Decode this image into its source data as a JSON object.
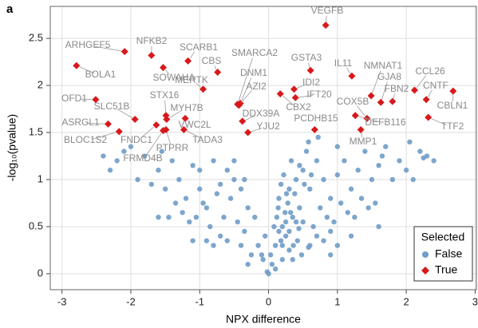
{
  "panel_label": "a",
  "chart_data": {
    "type": "scatter",
    "x_label": "NPX difference",
    "y_label": "-log₁₀(pvalue)",
    "xlim": [
      -3.17,
      3.03
    ],
    "ylim": [
      -0.17,
      2.84
    ],
    "xticks": [
      -3,
      -2,
      -1,
      0,
      1,
      2,
      3
    ],
    "yticks": [
      0,
      0.5,
      1,
      1.5,
      2,
      2.5
    ],
    "grid": true,
    "legend_title": "Selected",
    "legend_position": "lower right",
    "series": [
      {
        "name": "False",
        "color": "#6f9cc8",
        "marker": "circle",
        "x": [
          0.05,
          0.1,
          -0.1,
          0.2,
          0.15,
          -0.2,
          0.3,
          0.25,
          0.4,
          -0.3,
          0.35,
          0.5,
          -0.4,
          0.45,
          0.6,
          -0.5,
          0.55,
          -0.6,
          0.7,
          0.65,
          -0.7,
          0.8,
          0.9,
          -0.8,
          1.0,
          -0.9,
          1.1,
          -1.0,
          1.2,
          -1.1,
          1.3,
          -1.2,
          1.4,
          -1.3,
          1.5,
          -1.4,
          1.6,
          -1.5,
          1.7,
          -1.6,
          1.8,
          -1.7,
          1.9,
          -1.8,
          2.0,
          -1.9,
          2.2,
          -2.0,
          2.3,
          -2.1,
          2.1,
          -2.2,
          -2.3,
          0.1,
          0.2,
          0.3,
          0.12,
          0.28,
          -0.05,
          -0.15,
          -0.25,
          -0.35,
          0.42,
          0.5,
          0.38,
          0.22,
          0.33,
          0.18,
          -0.45,
          -0.55,
          -0.65,
          -0.75,
          -0.85,
          -0.95,
          -1.05,
          -1.15,
          -1.25,
          -1.35,
          -1.45,
          0.75,
          0.85,
          0.95,
          1.05,
          1.15,
          1.25,
          1.35,
          1.45,
          1.55,
          0.6,
          0.7,
          0.8,
          0.9,
          -0.6,
          -0.7,
          -0.8,
          -0.9,
          0.08,
          0.15,
          0.24,
          -0.08,
          -0.02,
          0.03,
          0.45,
          0.52,
          0.62,
          -0.35,
          -0.5,
          1.0,
          1.65,
          2.05,
          -1.55,
          -1.0,
          0.58,
          0.72,
          0.35,
          0.48,
          -0.4,
          -0.3,
          1.2,
          1.0,
          -1.1,
          0.9,
          1.6,
          -1.6,
          2.4,
          -2.4,
          0.2,
          0.25,
          0.3,
          0.4,
          0.36,
          0.44,
          0.18,
          0.26,
          0.32,
          0.14,
          2.25,
          0.58,
          0.0
        ],
        "y": [
          0.1,
          0.3,
          0.2,
          0.5,
          0.8,
          0.6,
          0.9,
          0.4,
          1.0,
          0.7,
          0.6,
          1.1,
          0.9,
          0.7,
          0.9,
          1.0,
          1.3,
          1.1,
          1.2,
          0.5,
          0.95,
          1.0,
          0.8,
          1.2,
          1.05,
          0.7,
          1.2,
          0.9,
          0.9,
          1.15,
          1.1,
          0.8,
          1.3,
          1.0,
          1.0,
          1.2,
          1.15,
          0.9,
          1.35,
          1.1,
          1.0,
          0.95,
          1.2,
          1.25,
          1.1,
          1.0,
          1.3,
          1.35,
          1.25,
          1.3,
          1.0,
          1.2,
          1.1,
          0.05,
          0.15,
          0.25,
          0.6,
          0.75,
          0.4,
          0.3,
          0.2,
          0.45,
          0.35,
          0.55,
          0.85,
          1.05,
          1.2,
          0.95,
          0.55,
          0.8,
          0.6,
          0.85,
          0.5,
          0.75,
          0.6,
          0.55,
          0.65,
          0.75,
          0.6,
          0.7,
          0.6,
          0.55,
          0.75,
          0.65,
          0.6,
          0.8,
          0.7,
          0.75,
          0.3,
          0.4,
          0.35,
          0.45,
          0.35,
          0.4,
          0.3,
          0.35,
          0.5,
          0.45,
          0.65,
          0.15,
          0.02,
          0.2,
          1.15,
          0.95,
          1.05,
          1.0,
          1.2,
          1.35,
          1.25,
          1.4,
          1.3,
          1.1,
          1.4,
          1.45,
          0.15,
          0.2,
          0.3,
          0.1,
          0.4,
          0.3,
          0.35,
          0.2,
          0.5,
          0.6,
          1.2,
          1.25,
          0.3,
          0.55,
          0.45,
          0.55,
          0.3,
          0.48,
          0.35,
          0.85,
          0.65,
          0.7,
          1.23,
          0.28,
          0.0
        ]
      },
      {
        "name": "True",
        "color": "#d7191c",
        "marker": "diamond",
        "labels": [
          "VEGFB",
          "ARHGEF5",
          "NFKB2",
          "SCARB1",
          "BOLA1",
          "SOWAHA",
          "CBS",
          "SMARCA2",
          "DNM1",
          "AZI2",
          "GSTA3",
          "IL11",
          "NMNAT1",
          "GJA8",
          "FBN2",
          "CCL26",
          "CNTF",
          "CBLN1",
          "TTF2",
          "MERTK",
          "IDI2",
          "IFT20",
          "CBX2",
          "DDX39A",
          "YJU2",
          "PCDHB15",
          "COX5B",
          "DEFB116",
          "MMP1",
          "OFD1",
          "STX16",
          "SLC51B",
          "MYH7B",
          "ASRGL1",
          "BLOC1S2",
          "FNDC1",
          "FRMD4B",
          "PTPRR",
          "VWC2L",
          "TADA3"
        ],
        "x": [
          0.83,
          -2.09,
          -1.7,
          -1.17,
          -2.79,
          -1.53,
          -0.74,
          -0.45,
          -0.41,
          -0.43,
          0.61,
          1.21,
          1.49,
          1.63,
          1.8,
          2.12,
          2.29,
          2.68,
          2.32,
          -0.95,
          0.37,
          0.39,
          0.17,
          -0.38,
          -0.3,
          0.67,
          1.43,
          1.26,
          1.34,
          -2.51,
          -1.49,
          -1.94,
          -1.48,
          -2.33,
          -2.17,
          -1.63,
          -1.53,
          -1.49,
          -1.21,
          -1.23
        ],
        "y": [
          2.64,
          2.36,
          2.32,
          2.26,
          2.21,
          2.19,
          2.14,
          1.8,
          1.81,
          1.79,
          2.16,
          2.1,
          1.89,
          1.82,
          1.83,
          1.95,
          1.85,
          1.94,
          1.66,
          1.96,
          1.96,
          1.87,
          1.91,
          1.62,
          1.5,
          1.53,
          1.65,
          1.68,
          1.53,
          1.85,
          1.68,
          1.64,
          1.64,
          1.59,
          1.51,
          1.58,
          1.52,
          1.53,
          1.65,
          1.53
        ]
      }
    ]
  }
}
